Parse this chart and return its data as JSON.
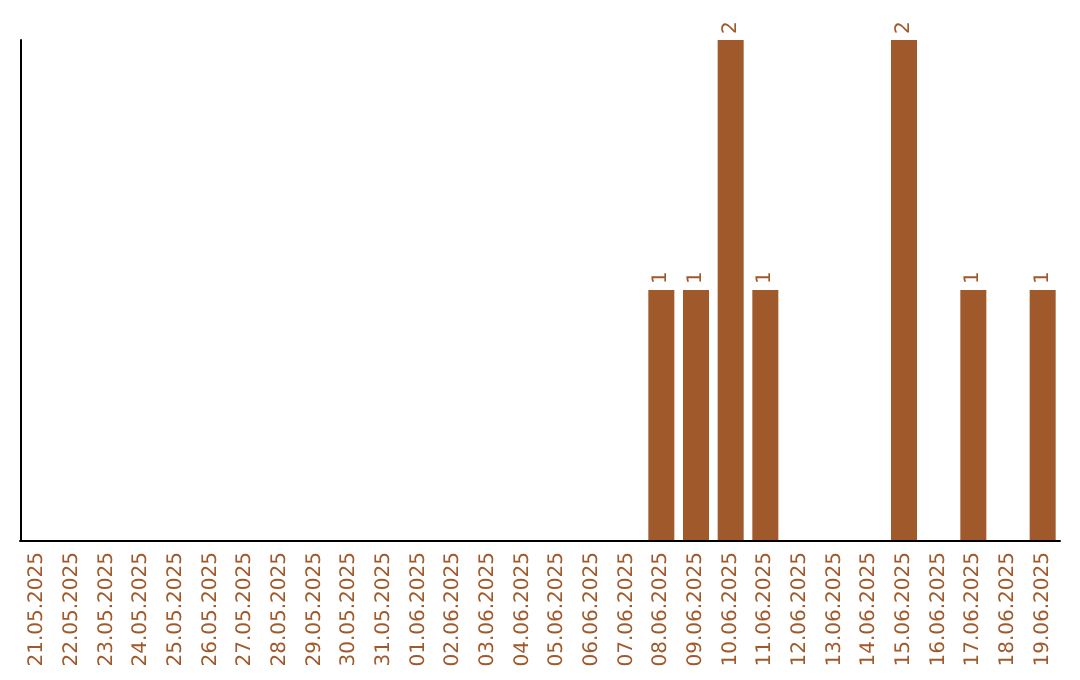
{
  "chart_data": {
    "type": "bar",
    "categories": [
      "21.05.2025",
      "22.05.2025",
      "23.05.2025",
      "24.05.2025",
      "25.05.2025",
      "26.05.2025",
      "27.05.2025",
      "28.05.2025",
      "29.05.2025",
      "30.05.2025",
      "31.05.2025",
      "01.06.2025",
      "02.06.2025",
      "03.06.2025",
      "04.06.2025",
      "05.06.2025",
      "06.06.2025",
      "07.06.2025",
      "08.06.2025",
      "09.06.2025",
      "10.06.2025",
      "11.06.2025",
      "12.06.2025",
      "13.06.2025",
      "14.06.2025",
      "15.06.2025",
      "16.06.2025",
      "17.06.2025",
      "18.06.2025",
      "19.06.2025"
    ],
    "values": [
      null,
      null,
      null,
      null,
      null,
      null,
      null,
      null,
      null,
      null,
      null,
      null,
      null,
      null,
      null,
      null,
      null,
      null,
      1,
      1,
      2,
      1,
      null,
      null,
      null,
      2,
      null,
      1,
      null,
      1
    ],
    "color": "#a0592a",
    "data_labels": true,
    "tick_labels": "x",
    "grid": false
  }
}
